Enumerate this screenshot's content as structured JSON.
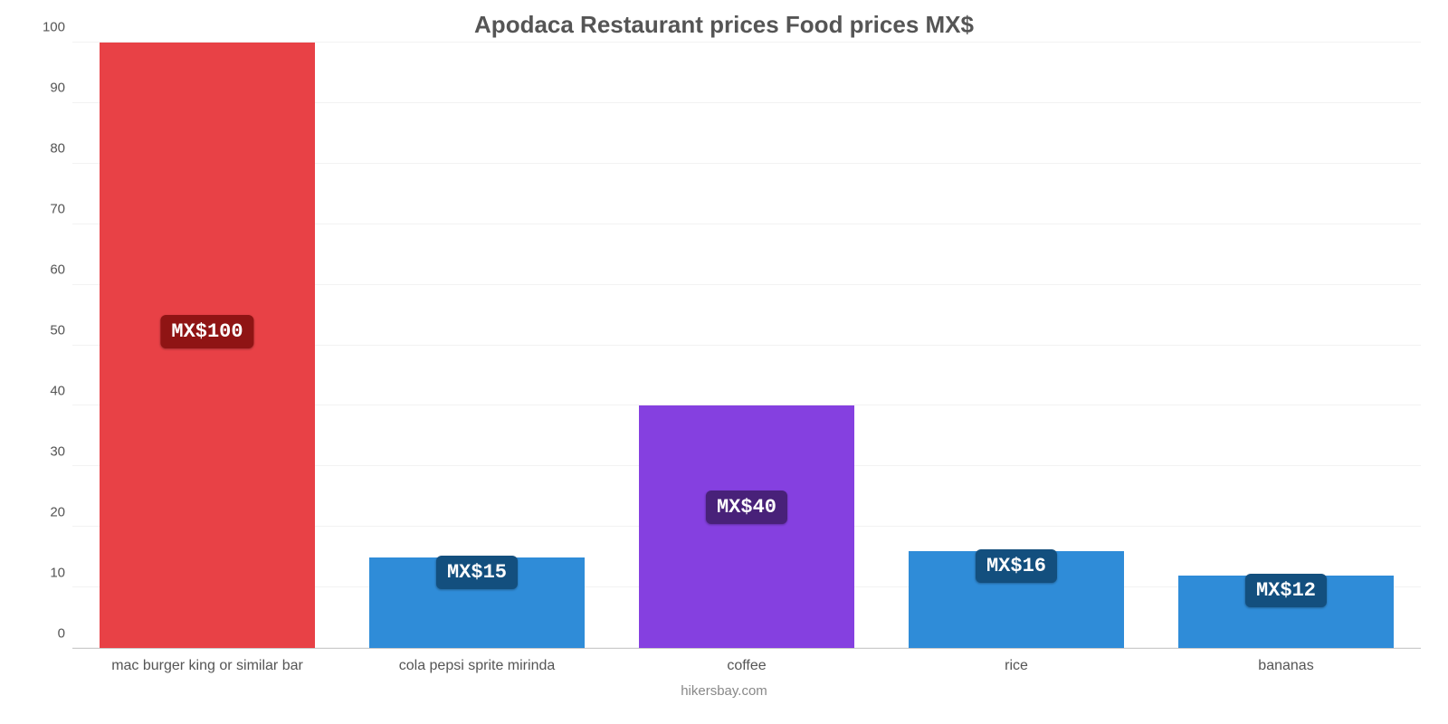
{
  "chart": {
    "type": "bar",
    "title": "Apodaca Restaurant prices Food prices MX$",
    "title_fontsize": 26,
    "title_color": "#555555",
    "attribution": "hikersbay.com",
    "attribution_color": "#888888",
    "background_color": "#ffffff",
    "grid_color": "#f2f2f2",
    "axis_text_color": "#555555",
    "ylim": [
      0,
      100
    ],
    "yticks": [
      0,
      10,
      20,
      30,
      40,
      50,
      60,
      70,
      80,
      90,
      100
    ],
    "ytick_step": 10,
    "bar_width_pct": 80,
    "value_label_fontsize": 22,
    "x_label_fontsize": 16,
    "categories": [
      "mac burger king or similar bar",
      "cola pepsi sprite mirinda",
      "coffee",
      "rice",
      "bananas"
    ],
    "values": [
      100,
      15,
      40,
      16,
      12
    ],
    "value_labels": [
      "MX$100",
      "MX$15",
      "MX$40",
      "MX$16",
      "MX$12"
    ],
    "bar_colors": [
      "#e84146",
      "#2f8cd8",
      "#8540e0",
      "#2f8cd8",
      "#2f8cd8"
    ],
    "badge_colors": [
      "#8f1414",
      "#134f7e",
      "#482179",
      "#134f7e",
      "#134f7e"
    ]
  }
}
